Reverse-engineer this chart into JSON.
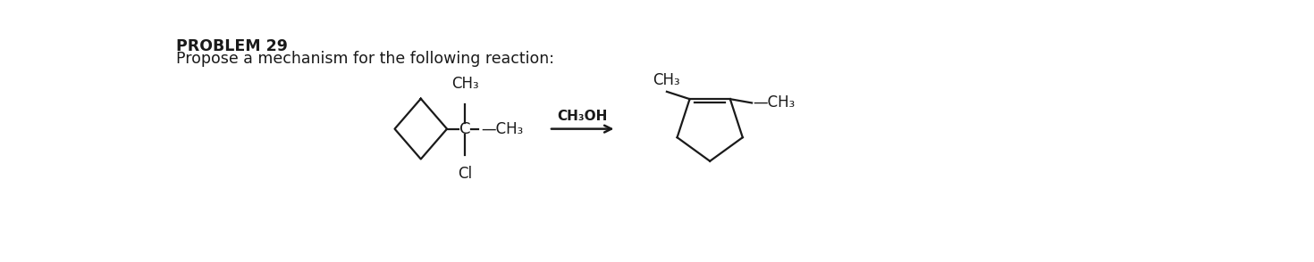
{
  "background_color": "#ffffff",
  "title_text": "PROBLEM 29",
  "subtitle_text": "Propose a mechanism for the following reaction:",
  "title_fontsize": 12.5,
  "subtitle_fontsize": 12.5,
  "text_color": "#1a1a1a",
  "arrow_label": "CH₃OH",
  "lw": 1.6
}
